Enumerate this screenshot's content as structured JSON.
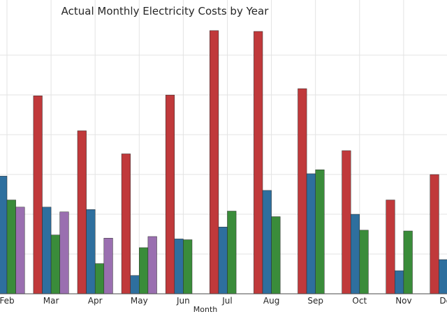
{
  "chart_data": {
    "type": "bar",
    "title": "Actual Monthly Electricity Costs by Year",
    "xlabel": "Month",
    "ylabel": "",
    "ylim": [
      0,
      330
    ],
    "grid": true,
    "categories": [
      "Feb",
      "Mar",
      "Apr",
      "May",
      "Jun",
      "Jul",
      "Aug",
      "Sep",
      "Oct",
      "Nov",
      "Dec"
    ],
    "series": [
      {
        "color": "#c0393b",
        "values": [
          null,
          249,
          205,
          176,
          250,
          331,
          330,
          258,
          180,
          118,
          150
        ]
      },
      {
        "color": "#2e6f9e",
        "values": [
          148,
          109,
          106,
          23,
          69,
          84,
          130,
          151,
          100,
          29,
          43
        ]
      },
      {
        "color": "#3a8c3a",
        "values": [
          118,
          74,
          38,
          58,
          68,
          104,
          97,
          156,
          80,
          79,
          null
        ]
      },
      {
        "color": "#9a6fb0",
        "values": [
          109,
          103,
          70,
          72,
          null,
          null,
          null,
          null,
          null,
          null,
          null
        ]
      }
    ]
  }
}
